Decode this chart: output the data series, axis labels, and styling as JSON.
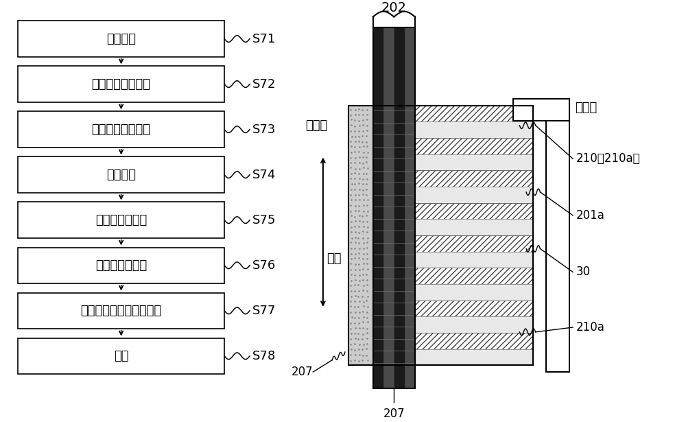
{
  "bg_color": "#ffffff",
  "flow_steps": [
    {
      "label": "芯部冲裁",
      "code": "S71"
    },
    {
      "label": "粘接剂涂敷、层叠",
      "code": "S72"
    },
    {
      "label": "绝缘纸插入、粘接",
      "code": "S73"
    },
    {
      "label": "线圈插入",
      "code": "S74"
    },
    {
      "label": "焊接、端子连接",
      "code": "S75"
    },
    {
      "label": "清漆、粉体涂装",
      "code": "S76"
    },
    {
      "label": "粘接剂、清漆、粉体固化",
      "code": "S77"
    },
    {
      "label": "捆包",
      "code": "S78"
    }
  ],
  "diagram_labels": {
    "label_202": "202",
    "label_neijing": "内径侧",
    "label_waijing": "外径侧",
    "label_zhuxiang": "轴向",
    "label_207_left": "207",
    "label_207_bottom": "207",
    "label_210_210a": "210（210a）",
    "label_201a": "201a",
    "label_30": "30",
    "label_210a": "210a"
  },
  "fig_width": 10.0,
  "fig_height": 6.15,
  "dpi": 100
}
